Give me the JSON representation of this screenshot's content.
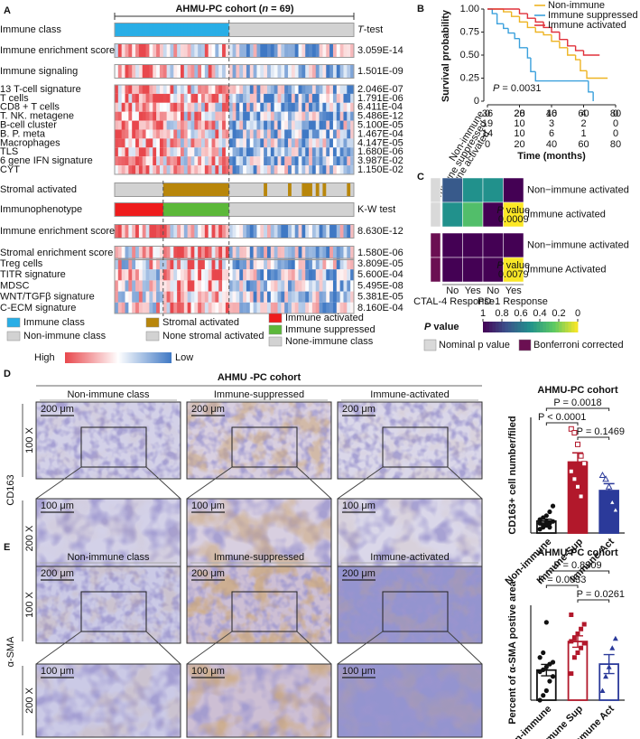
{
  "panel_labels": [
    "A",
    "B",
    "C",
    "D",
    "E"
  ],
  "panel_a": {
    "title": {
      "pre": "AHMU-PC cohort (",
      "n": "n",
      "post": " = 69)"
    },
    "tests": [
      {
        "italic": "T",
        "text": "-test"
      },
      {
        "text": "K-W test"
      }
    ],
    "rows": [
      {
        "label": "Immune class"
      },
      {
        "label": "Immune enrichment score",
        "p": "3.059E-14"
      },
      {
        "label": "Immune signaling",
        "p": "1.501E-09"
      },
      {
        "label": "13 T-cell signature",
        "p": "2.046E-07"
      },
      {
        "label": "T cells",
        "p": "1.791E-06"
      },
      {
        "label": "CD8 + T cells",
        "p": "6.411E-04"
      },
      {
        "label": "T. NK. metagene",
        "p": "5.486E-12"
      },
      {
        "label": "B-cell cluster",
        "p": "5.100E-05"
      },
      {
        "label": "B. P. meta",
        "p": "1.467E-04"
      },
      {
        "label": "Macrophages",
        "p": "4.147E-05"
      },
      {
        "label": "TLS",
        "p": "1.680E-06"
      },
      {
        "label": "6 gene IFN signature",
        "p": "3.987E-02"
      },
      {
        "label": "CYT",
        "p": "1.150E-02"
      },
      {
        "label": "Stromal activated"
      },
      {
        "label": "Immunophenotype"
      },
      {
        "label": "Immune enrichment score",
        "p": "8.630E-12"
      },
      {
        "label": "Stromal enrichment score",
        "p": "1.580E-06"
      },
      {
        "label": "Treg cells",
        "p": "3.809E-05"
      },
      {
        "label": "TITR signature",
        "p": "5.600E-04"
      },
      {
        "label": "MDSC",
        "p": "5.495E-08"
      },
      {
        "label": "WNT/TGFβ signature",
        "p": "5.381E-05"
      },
      {
        "label": "C-ECM signature",
        "p": "8.160E-04"
      }
    ],
    "legend": [
      {
        "label": "Immune class",
        "color": "#29aee6"
      },
      {
        "label": "Non-immune class",
        "color": "#d2d2d2"
      },
      {
        "label": "Stromal activated",
        "color": "#b8860b"
      },
      {
        "label": "None stromal activated",
        "color": "#d2d2d2"
      },
      {
        "label": "Immune activated",
        "color": "#ee1c1c"
      },
      {
        "label": "Immune suppressed",
        "color": "#5cb83a"
      },
      {
        "label": "None-immune class",
        "color": "#d2d2d2"
      }
    ],
    "colors": {
      "high": "#e8474c",
      "low": "#3f78c4"
    },
    "scale": {
      "high": "High",
      "low": "Low"
    }
  },
  "chart_data": [
    {
      "type": "line",
      "ylabel": "Survival probability",
      "xlabel": "Time (months)",
      "xlim": [
        0,
        80
      ],
      "ylim": [
        0,
        1
      ],
      "xticks": [
        0,
        20,
        40,
        60,
        80
      ],
      "yticks": [
        0,
        0.25,
        {
          "value": 0.5,
          "label": "0.50"
        },
        0.75,
        {
          "value": 1,
          "label": "1.00"
        }
      ],
      "annotation": {
        "italic": "P",
        "text": " = 0.0031"
      },
      "series": [
        {
          "name": "Non-immune",
          "color": "#eeb422",
          "x": [
            0,
            10,
            15,
            20,
            25,
            30,
            35,
            40,
            45,
            50,
            55,
            58,
            62,
            75
          ],
          "values": [
            1,
            0.97,
            0.92,
            0.86,
            0.8,
            0.75,
            0.72,
            0.65,
            0.58,
            0.5,
            0.45,
            0.33,
            0.25,
            0.25
          ],
          "at_risk": [
            36,
            28,
            16,
            4,
            0
          ]
        },
        {
          "name": "Immune suppressed",
          "color": "#3aa0dc",
          "x": [
            0,
            3,
            6,
            10,
            13,
            17,
            20,
            25,
            27,
            30,
            60,
            63,
            66
          ],
          "values": [
            1,
            0.95,
            0.84,
            0.79,
            0.74,
            0.68,
            0.58,
            0.47,
            0.32,
            0.22,
            0.22,
            0.1,
            0
          ],
          "at_risk": [
            19,
            10,
            3,
            2,
            0
          ]
        },
        {
          "name": "Immune activated",
          "color": "#e0303a",
          "x": [
            0,
            20,
            25,
            30,
            35,
            40,
            45,
            50,
            55,
            60,
            70
          ],
          "values": [
            1,
            0.95,
            0.9,
            0.86,
            0.8,
            0.75,
            0.67,
            0.6,
            0.55,
            0.5,
            0.5
          ],
          "at_risk": [
            14,
            10,
            6,
            1,
            0
          ]
        }
      ]
    },
    {
      "type": "heatmap",
      "rows": [
        "Non−immune activated",
        "Immune activated",
        "Non−immune activated",
        "Immune Activated"
      ],
      "columns": [
        "No",
        "Yes",
        "No",
        "Yes"
      ],
      "column_groups": [
        "CTAL-4 Response",
        "PD-1 Response"
      ],
      "values": [
        [
          0.72,
          0.5,
          0.5,
          1
        ],
        [
          0.5,
          0.3,
          1,
          0.0009
        ],
        [
          1,
          1,
          1,
          1
        ],
        [
          1,
          1,
          1,
          0.0079
        ]
      ],
      "row_groups": [
        0,
        0,
        1,
        1
      ],
      "colorbar_title": [
        "P",
        " value"
      ],
      "colorbar_ticks": [
        1,
        0.8,
        0.6,
        0.4,
        0.2,
        0
      ],
      "legend": [
        {
          "label": "Nominal p value",
          "color": "#d9d9d9"
        },
        {
          "label": "Bonferroni corrected",
          "color": "#6b0f52"
        }
      ]
    },
    {
      "type": "bar",
      "title": "AHMU-PC cohort",
      "ylabel": "CD163+ cell number/filed",
      "categories": [
        "Non-immune",
        "Immune-Sup",
        "Immune-Act"
      ],
      "values": [
        31,
        184,
        110
      ],
      "errors": [
        5,
        24,
        18
      ],
      "points": [
        [
          10,
          15,
          20,
          25,
          30,
          35,
          40,
          45,
          55,
          70,
          25,
          20,
          30,
          15
        ],
        [
          270,
          260,
          230,
          200,
          180,
          160,
          140,
          120,
          95
        ],
        [
          150,
          140,
          120,
          80,
          60
        ]
      ],
      "colors": [
        "#111111",
        "#b2182b",
        "#2b3a9a"
      ],
      "markers": [
        "circle",
        "square",
        "triangle"
      ],
      "filled": true,
      "ylim": [
        0,
        300
      ],
      "comparisons": [
        "P = 0.0018",
        "P < 0.0001",
        "P = 0.1469"
      ]
    },
    {
      "type": "bar",
      "title": "AHMU-PC cohort",
      "ylabel": "Percent of α-SMA postive area",
      "categories": [
        "Non-immune",
        "Immune Sup",
        "Immune Act"
      ],
      "values": [
        3.17,
        6.18,
        3.8
      ],
      "errors": [
        0.6,
        0.6,
        1.0
      ],
      "points": [
        [
          0,
          0.5,
          1,
          2,
          2.5,
          3,
          3.2,
          3.5,
          3.8,
          4,
          4.5,
          5,
          8.2
        ],
        [
          2.8,
          4.5,
          5,
          5.5,
          6,
          6.2,
          6.5,
          7,
          7.5,
          8,
          9
        ],
        [
          1,
          2.5,
          3.5,
          5.5,
          6.5
        ]
      ],
      "colors": [
        "#111111",
        "#b2182b",
        "#2b3a9a"
      ],
      "markers": [
        "circle",
        "square",
        "triangle"
      ],
      "filled": false,
      "ylim": [
        0,
        10
      ],
      "comparisons": [
        "P = 0.8309",
        "P = 0.0033",
        "P = 0.0261"
      ]
    }
  ],
  "ihc": {
    "header": "AHMU -PC cohort",
    "columns": [
      "Non-immune class",
      "Immune-suppressed",
      "Immune-activated"
    ],
    "magnifications": [
      "100 X",
      "200 X"
    ],
    "scale_bars": [
      "200  μm",
      "100  μm"
    ],
    "stains": [
      "CD163",
      "α-SMA"
    ]
  }
}
